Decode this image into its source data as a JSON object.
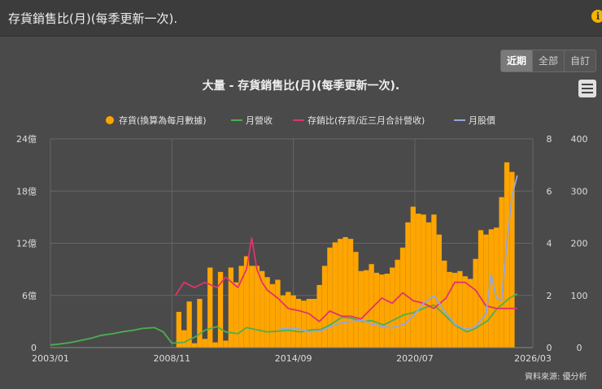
{
  "header": {
    "title": "存貨銷售比(月)(每季更新一次).",
    "info_icon": "info-icon"
  },
  "controls": {
    "ranges": [
      {
        "label": "近期",
        "active": true
      },
      {
        "label": "全部",
        "active": false
      },
      {
        "label": "自訂",
        "active": false
      }
    ],
    "menu_icon": "hamburger-menu-icon"
  },
  "source_text": "資料來源: 優分析",
  "colors": {
    "inventory": "#ffa500",
    "revenue": "#4caf50",
    "ratio": "#e0336e",
    "price": "#8fa8e0",
    "background": "#4a4a4a",
    "grid": "#666666"
  },
  "chart_data": {
    "type": "bar+line",
    "title": "大量 - 存貨銷售比(月)(每季更新一次).",
    "x_ticks": [
      "2003/01",
      "2008/11",
      "2014/09",
      "2020/07",
      "2026/03"
    ],
    "x_range": [
      "2003/01",
      "2026/03"
    ],
    "y_left": {
      "ticks": [
        "0",
        "6億",
        "12億",
        "18億",
        "24億"
      ],
      "range": [
        0,
        24
      ],
      "unit": "億"
    },
    "y_right1": {
      "ticks": [
        "0",
        "2",
        "4",
        "6",
        "8"
      ],
      "range": [
        0,
        8
      ]
    },
    "y_right2": {
      "ticks": [
        "0",
        "100",
        "200",
        "300",
        "400"
      ],
      "range": [
        0,
        400
      ]
    },
    "legend_position": "top",
    "series": [
      {
        "name": "存貨(換算為每月數據)",
        "type": "bar",
        "axis": "y_left",
        "unit": "億",
        "points": [
          [
            "2009/03",
            4.1
          ],
          [
            "2009/06",
            2
          ],
          [
            "2009/09",
            5.3
          ],
          [
            "2009/12",
            0.5
          ],
          [
            "2010/03",
            5.6
          ],
          [
            "2010/06",
            1
          ],
          [
            "2010/09",
            9.2
          ],
          [
            "2010/12",
            0.6
          ],
          [
            "2011/03",
            8.7
          ],
          [
            "2011/06",
            0.8
          ],
          [
            "2011/09",
            9.2
          ],
          [
            "2011/12",
            7.5
          ],
          [
            "2012/03",
            9.4
          ],
          [
            "2012/06",
            10.5
          ],
          [
            "2012/09",
            9.4
          ],
          [
            "2012/12",
            9.4
          ],
          [
            "2013/03",
            8.8
          ],
          [
            "2013/06",
            8.1
          ],
          [
            "2013/09",
            7.3
          ],
          [
            "2013/12",
            7.8
          ],
          [
            "2014/03",
            6.0
          ],
          [
            "2014/06",
            6.4
          ],
          [
            "2014/09",
            6.0
          ],
          [
            "2014/12",
            5.6
          ],
          [
            "2015/03",
            5.4
          ],
          [
            "2015/06",
            5.6
          ],
          [
            "2015/09",
            5.6
          ],
          [
            "2015/12",
            7.2
          ],
          [
            "2016/03",
            9.4
          ],
          [
            "2016/06",
            11.5
          ],
          [
            "2016/09",
            12.1
          ],
          [
            "2016/12",
            12.5
          ],
          [
            "2017/03",
            12.7
          ],
          [
            "2017/06",
            12.5
          ],
          [
            "2017/09",
            11.0
          ],
          [
            "2017/12",
            8.8
          ],
          [
            "2018/03",
            8.9
          ],
          [
            "2018/06",
            9.6
          ],
          [
            "2018/09",
            8.6
          ],
          [
            "2018/12",
            8.4
          ],
          [
            "2019/03",
            8.5
          ],
          [
            "2019/06",
            9.2
          ],
          [
            "2019/09",
            10.1
          ],
          [
            "2019/12",
            11.5
          ],
          [
            "2020/03",
            14.4
          ],
          [
            "2020/06",
            16.2
          ],
          [
            "2020/09",
            15.4
          ],
          [
            "2020/12",
            15.3
          ],
          [
            "2021/03",
            14.4
          ],
          [
            "2021/06",
            15.3
          ],
          [
            "2021/09",
            13.0
          ],
          [
            "2021/12",
            10.0
          ],
          [
            "2022/03",
            8.7
          ],
          [
            "2022/06",
            8.6
          ],
          [
            "2022/09",
            8.8
          ],
          [
            "2022/12",
            8.2
          ],
          [
            "2023/03",
            7.9
          ],
          [
            "2023/06",
            10.2
          ],
          [
            "2023/09",
            13.5
          ],
          [
            "2023/12",
            13.0
          ],
          [
            "2024/03",
            13.6
          ],
          [
            "2024/06",
            13.8
          ],
          [
            "2024/09",
            17.3
          ],
          [
            "2024/12",
            21.3
          ],
          [
            "2025/03",
            20.2
          ]
        ]
      },
      {
        "name": "月營收",
        "type": "line",
        "axis": "y_left",
        "unit": "億",
        "points": [
          [
            "2003/01",
            0.3
          ],
          [
            "2003/06",
            0.4
          ],
          [
            "2004/01",
            0.6
          ],
          [
            "2004/06",
            0.8
          ],
          [
            "2005/01",
            1.1
          ],
          [
            "2005/06",
            1.4
          ],
          [
            "2006/01",
            1.6
          ],
          [
            "2006/06",
            1.8
          ],
          [
            "2007/01",
            2.0
          ],
          [
            "2007/06",
            2.2
          ],
          [
            "2008/01",
            2.3
          ],
          [
            "2008/06",
            1.8
          ],
          [
            "2008/11",
            0.5
          ],
          [
            "2009/06",
            0.6
          ],
          [
            "2010/01",
            1.3
          ],
          [
            "2010/06",
            2.0
          ],
          [
            "2011/01",
            2.4
          ],
          [
            "2011/06",
            1.8
          ],
          [
            "2012/01",
            1.6
          ],
          [
            "2012/06",
            2.3
          ],
          [
            "2013/01",
            2.0
          ],
          [
            "2013/06",
            1.8
          ],
          [
            "2014/01",
            1.9
          ],
          [
            "2014/06",
            2.0
          ],
          [
            "2015/01",
            1.8
          ],
          [
            "2015/06",
            2.0
          ],
          [
            "2016/01",
            2.1
          ],
          [
            "2016/06",
            2.6
          ],
          [
            "2017/01",
            3.5
          ],
          [
            "2017/06",
            3.4
          ],
          [
            "2018/01",
            3.0
          ],
          [
            "2018/06",
            3.1
          ],
          [
            "2019/01",
            2.6
          ],
          [
            "2019/06",
            3.1
          ],
          [
            "2020/01",
            3.8
          ],
          [
            "2020/06",
            4.0
          ],
          [
            "2021/01",
            4.6
          ],
          [
            "2021/06",
            4.9
          ],
          [
            "2022/01",
            3.6
          ],
          [
            "2022/06",
            2.6
          ],
          [
            "2023/01",
            1.8
          ],
          [
            "2023/06",
            2.2
          ],
          [
            "2024/01",
            3.1
          ],
          [
            "2024/06",
            4.4
          ],
          [
            "2025/01",
            5.6
          ],
          [
            "2025/06",
            6.2
          ]
        ]
      },
      {
        "name": "存銷比(存貨/近三月合計營收)",
        "type": "line",
        "axis": "y_right1",
        "points": [
          [
            "2009/01",
            2.0
          ],
          [
            "2009/06",
            2.5
          ],
          [
            "2009/12",
            2.3
          ],
          [
            "2010/06",
            2.5
          ],
          [
            "2011/01",
            2.3
          ],
          [
            "2011/06",
            2.7
          ],
          [
            "2012/01",
            2.3
          ],
          [
            "2012/06",
            3.0
          ],
          [
            "2012/09",
            4.2
          ],
          [
            "2012/12",
            3.0
          ],
          [
            "2013/03",
            2.5
          ],
          [
            "2013/06",
            2.2
          ],
          [
            "2013/12",
            1.9
          ],
          [
            "2014/06",
            1.5
          ],
          [
            "2015/01",
            1.4
          ],
          [
            "2015/06",
            1.3
          ],
          [
            "2015/12",
            1.0
          ],
          [
            "2016/06",
            1.4
          ],
          [
            "2017/01",
            1.2
          ],
          [
            "2017/06",
            1.2
          ],
          [
            "2017/12",
            1.1
          ],
          [
            "2018/06",
            1.5
          ],
          [
            "2018/12",
            1.9
          ],
          [
            "2019/06",
            1.7
          ],
          [
            "2019/12",
            2.1
          ],
          [
            "2020/06",
            1.8
          ],
          [
            "2020/12",
            1.7
          ],
          [
            "2021/06",
            1.5
          ],
          [
            "2022/01",
            1.9
          ],
          [
            "2022/06",
            2.5
          ],
          [
            "2022/12",
            2.5
          ],
          [
            "2023/06",
            2.2
          ],
          [
            "2023/12",
            1.6
          ],
          [
            "2024/06",
            1.5
          ],
          [
            "2024/12",
            1.5
          ],
          [
            "2025/06",
            1.5
          ]
        ]
      },
      {
        "name": "月股價",
        "type": "line",
        "axis": "y_right2",
        "points": [
          [
            "2014/01",
            35
          ],
          [
            "2014/06",
            38
          ],
          [
            "2015/01",
            35
          ],
          [
            "2015/06",
            30
          ],
          [
            "2016/01",
            32
          ],
          [
            "2016/06",
            40
          ],
          [
            "2017/01",
            48
          ],
          [
            "2017/06",
            50
          ],
          [
            "2018/01",
            52
          ],
          [
            "2018/06",
            45
          ],
          [
            "2019/01",
            40
          ],
          [
            "2019/06",
            38
          ],
          [
            "2020/01",
            45
          ],
          [
            "2020/06",
            60
          ],
          [
            "2020/12",
            85
          ],
          [
            "2021/06",
            100
          ],
          [
            "2021/12",
            70
          ],
          [
            "2022/06",
            45
          ],
          [
            "2022/12",
            35
          ],
          [
            "2023/06",
            40
          ],
          [
            "2023/12",
            65
          ],
          [
            "2024/03",
            140
          ],
          [
            "2024/06",
            95
          ],
          [
            "2024/09",
            90
          ],
          [
            "2024/12",
            200
          ],
          [
            "2025/03",
            290
          ],
          [
            "2025/06",
            330
          ]
        ]
      }
    ]
  }
}
